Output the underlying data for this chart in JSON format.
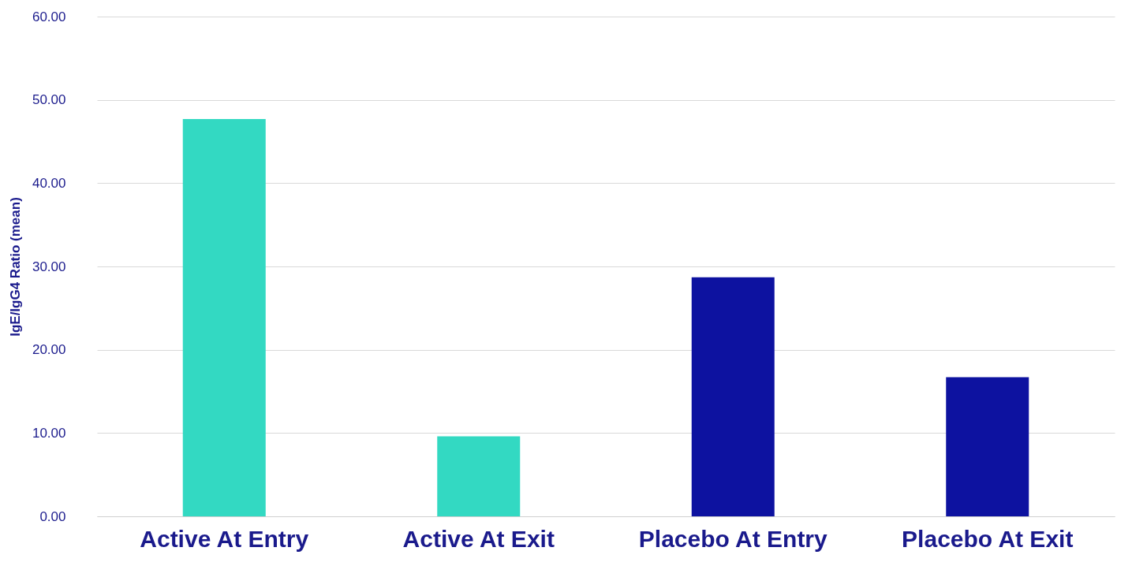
{
  "chart_data": {
    "type": "bar",
    "ylabel": "IgE/IgG4 Ratio (mean)",
    "categories": [
      "Active At Entry",
      "Active At Exit",
      "Placebo At Entry",
      "Placebo At Exit"
    ],
    "values": [
      47.7,
      9.6,
      28.7,
      16.7
    ],
    "colors": [
      "#33d9c2",
      "#33d9c2",
      "#0d12a0",
      "#0d12a0"
    ],
    "ylim": [
      0,
      60
    ],
    "yticks": [
      {
        "value": 0,
        "label": "0.00"
      },
      {
        "value": 10,
        "label": "10.00"
      },
      {
        "value": 20,
        "label": "20.00"
      },
      {
        "value": 30,
        "label": "30.00"
      },
      {
        "value": 40,
        "label": "40.00"
      },
      {
        "value": 50,
        "label": "50.00"
      },
      {
        "value": 60,
        "label": "60.00"
      }
    ],
    "grid": "y"
  }
}
